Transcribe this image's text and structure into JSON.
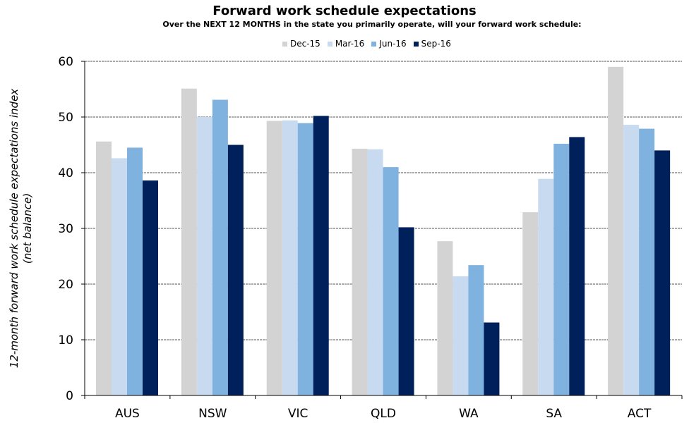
{
  "chart_data": {
    "type": "bar",
    "title": "Forward work schedule expectations",
    "subtitle": "Over the NEXT 12 MONTHS in the state you primarily operate, will your forward work schedule:",
    "ylabel_line1": "12-month forward work schedule expectations index",
    "ylabel_line2": "(net balance)",
    "xlabel": "",
    "categories": [
      "AUS",
      "NSW",
      "VIC",
      "QLD",
      "WA",
      "SA",
      "ACT"
    ],
    "series": [
      {
        "name": "Dec-15",
        "color": "#d3d3d3",
        "values": [
          45.6,
          55.1,
          49.3,
          44.3,
          27.7,
          32.9,
          59.0
        ]
      },
      {
        "name": "Mar-16",
        "color": "#c8daf0",
        "values": [
          42.6,
          50.0,
          49.4,
          44.2,
          21.4,
          38.9,
          48.6
        ]
      },
      {
        "name": "Jun-16",
        "color": "#7fb2de",
        "values": [
          44.5,
          53.1,
          48.9,
          41.0,
          23.4,
          45.2,
          47.9
        ]
      },
      {
        "name": "Sep-16",
        "color": "#00205b",
        "values": [
          38.6,
          45.0,
          50.2,
          30.2,
          13.1,
          46.4,
          44.0
        ]
      }
    ],
    "ylim": [
      0,
      60
    ],
    "yticks": [
      "0",
      "10",
      "20",
      "30",
      "40",
      "50",
      "60"
    ],
    "grid": true,
    "legend_position": "top-center"
  }
}
